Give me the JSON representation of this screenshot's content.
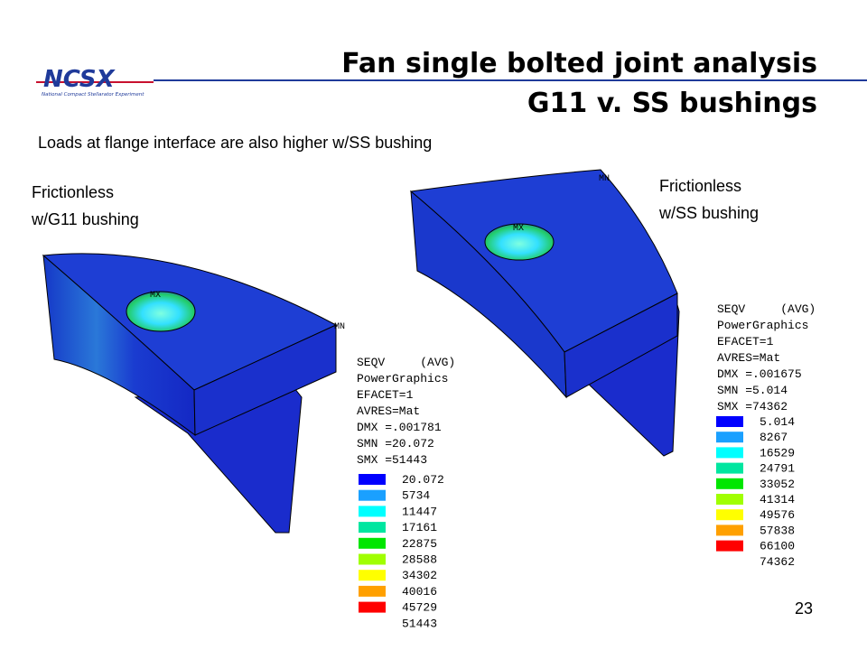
{
  "header": {
    "title_lines": [
      "Fan single bolted joint analysis",
      "G11 v. SS bushings"
    ],
    "logo_text": "NCSX",
    "logo_subtext": "National Compact Stellarator Experiment"
  },
  "subtitle": "Loads at flange interface are also higher w/SS bushing",
  "panels": [
    {
      "label_lines": [
        "Frictionless",
        "w/G11 bushing"
      ],
      "max_marker": "MX",
      "min_marker": "MN",
      "legend": {
        "lines": [
          "SEQV     (AVG)",
          "PowerGraphics",
          "EFACET=1",
          "AVRES=Mat",
          "DMX =.001781",
          "SMN =20.072",
          "SMX =51443"
        ],
        "levels": [
          "20.072",
          "5734",
          "11447",
          "17161",
          "22875",
          "28588",
          "34302",
          "40016",
          "45729",
          "51443"
        ]
      }
    },
    {
      "label_lines": [
        "Frictionless",
        "w/SS bushing"
      ],
      "max_marker": "MX",
      "min_marker": "MN",
      "legend": {
        "lines": [
          "SEQV     (AVG)",
          "PowerGraphics",
          "EFACET=1",
          "AVRES=Mat",
          "DMX =.001675",
          "SMN =5.014",
          "SMX =74362"
        ],
        "levels": [
          "5.014",
          "8267",
          "16529",
          "24791",
          "33052",
          "41314",
          "49576",
          "57838",
          "66100",
          "74362"
        ]
      }
    }
  ],
  "page_number": "23"
}
